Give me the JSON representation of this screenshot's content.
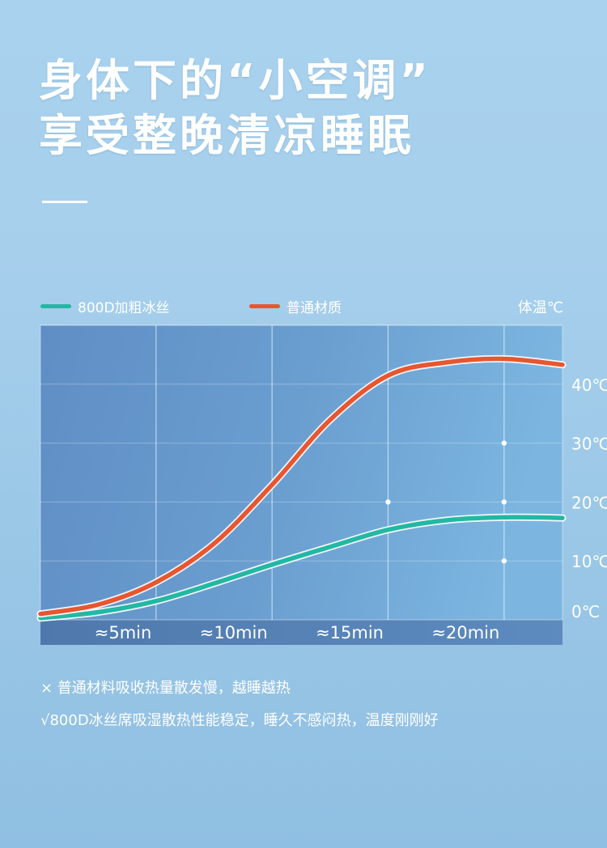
{
  "headline": {
    "line1": "身体下的“小空调”",
    "line2": "享受整晚清凉睡眠"
  },
  "legend": {
    "items": [
      {
        "label": "800D加粗冰丝",
        "color": "#22b8a4"
      },
      {
        "label": "普通材质",
        "color": "#e8562f"
      }
    ],
    "unit_label": "体温℃"
  },
  "chart_data": {
    "type": "line",
    "x_tick_labels": [
      "≈5min",
      "≈10min",
      "≈15min",
      "≈20min"
    ],
    "y_tick_labels": [
      "0℃",
      "10℃",
      "20℃",
      "30℃",
      "40℃"
    ],
    "x": [
      0,
      2.5,
      5,
      7.5,
      10,
      12.5,
      15,
      17.5,
      20,
      22.5
    ],
    "xlim": [
      0,
      22.5
    ],
    "ylim": [
      0,
      50
    ],
    "grid": true,
    "series": [
      {
        "name": "800D加粗冰丝",
        "color": "#22b8a4",
        "values": [
          0.3,
          1.3,
          3.2,
          6.2,
          9.4,
          12.4,
          15.3,
          16.9,
          17.4,
          17.3
        ]
      },
      {
        "name": "普通材质",
        "color": "#e8562f",
        "values": [
          1,
          2.6,
          6.4,
          13,
          23,
          34,
          41.5,
          43.7,
          44.3,
          43.3
        ]
      }
    ]
  },
  "notes": [
    "× 普通材料吸收热量散发慢，越睡越热",
    "√800D冰丝席吸湿散热性能稳定，睡久不感闷热，温度刚刚好"
  ]
}
